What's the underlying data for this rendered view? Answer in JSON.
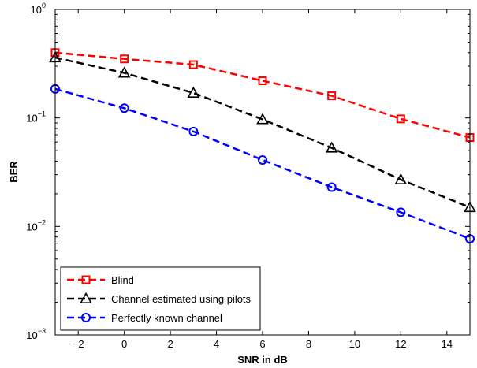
{
  "chart_data": {
    "type": "line",
    "xlabel": "SNR in dB",
    "ylabel": "BER",
    "xlim": [
      -3,
      15
    ],
    "ylim": [
      0.001,
      1
    ],
    "yscale": "log",
    "grid": false,
    "legend_position": "bottom-left",
    "x_ticks": [
      -2,
      0,
      2,
      4,
      6,
      8,
      10,
      12,
      14
    ],
    "x_tick_labels": [
      "−2",
      "0",
      "2",
      "4",
      "6",
      "8",
      "10",
      "12",
      "14"
    ],
    "y_ticks": [
      {
        "value": 0.001,
        "base": "10",
        "exp": "−3"
      },
      {
        "value": 0.01,
        "base": "10",
        "exp": "−2"
      },
      {
        "value": 0.1,
        "base": "10",
        "exp": "−1"
      },
      {
        "value": 1,
        "base": "10",
        "exp": "0"
      }
    ],
    "x": [
      -3,
      0,
      3,
      6,
      9,
      12,
      15
    ],
    "series": [
      {
        "name": "Blind",
        "color": "#ff0000",
        "marker": "square",
        "values": [
          0.4,
          0.35,
          0.31,
          0.22,
          0.16,
          0.098,
          0.066
        ]
      },
      {
        "name": "Channel estimated using pilots",
        "color": "#000000",
        "marker": "triangle",
        "values": [
          0.36,
          0.26,
          0.17,
          0.097,
          0.053,
          0.027,
          0.015
        ]
      },
      {
        "name": "Perfectly known channel",
        "color": "#0000ff",
        "marker": "circle",
        "values": [
          0.185,
          0.123,
          0.075,
          0.041,
          0.023,
          0.0135,
          0.0077
        ]
      }
    ]
  }
}
